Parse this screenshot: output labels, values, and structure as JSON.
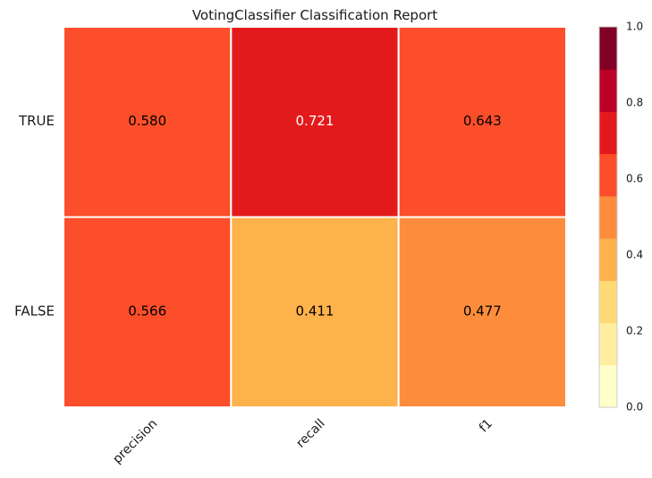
{
  "chart_data": {
    "type": "heatmap",
    "title": "VotingClassifier Classification Report",
    "rows": [
      "TRUE",
      "FALSE"
    ],
    "columns": [
      "precision",
      "recall",
      "f1"
    ],
    "values": [
      [
        0.58,
        0.721,
        0.643
      ],
      [
        0.566,
        0.411,
        0.477
      ]
    ],
    "value_labels": [
      [
        "0.580",
        "0.721",
        "0.643"
      ],
      [
        "0.566",
        "0.411",
        "0.477"
      ]
    ],
    "vmin": 0.0,
    "vmax": 1.0,
    "colormap": [
      "#ffffcc",
      "#ffeda0",
      "#fed976",
      "#feb24c",
      "#fd8d3c",
      "#fc4e2a",
      "#e31a1c",
      "#bd0026",
      "#800026"
    ],
    "colorbar": {
      "ticks": [
        0.0,
        0.2,
        0.4,
        0.6,
        0.8,
        1.0
      ],
      "tick_labels": [
        "0.0",
        "0.2",
        "0.4",
        "0.6",
        "0.8",
        "1.0"
      ]
    }
  }
}
